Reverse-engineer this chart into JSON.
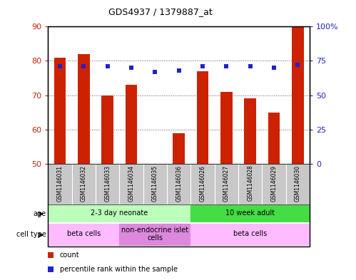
{
  "title": "GDS4937 / 1379887_at",
  "samples": [
    "GSM1146031",
    "GSM1146032",
    "GSM1146033",
    "GSM1146034",
    "GSM1146035",
    "GSM1146036",
    "GSM1146026",
    "GSM1146027",
    "GSM1146028",
    "GSM1146029",
    "GSM1146030"
  ],
  "counts": [
    81,
    82,
    70,
    73,
    50,
    59,
    77,
    71,
    69,
    65,
    90
  ],
  "percentile_ranks": [
    71,
    71,
    71,
    70,
    67,
    68,
    71,
    71,
    71,
    70,
    72
  ],
  "ymin": 50,
  "ymax": 90,
  "yticks_left": [
    50,
    60,
    70,
    80,
    90
  ],
  "yticks_right": [
    0,
    25,
    50,
    75,
    100
  ],
  "bar_color": "#cc2200",
  "dot_color": "#2222cc",
  "bar_width": 0.5,
  "age_groups": [
    {
      "label": "2-3 day neonate",
      "start": 0,
      "end": 6,
      "color": "#bbffbb"
    },
    {
      "label": "10 week adult",
      "start": 6,
      "end": 11,
      "color": "#44dd44"
    }
  ],
  "cell_type_groups": [
    {
      "label": "beta cells",
      "start": 0,
      "end": 3,
      "color": "#ffbbff"
    },
    {
      "label": "non-endocrine islet\ncells",
      "start": 3,
      "end": 6,
      "color": "#dd88dd"
    },
    {
      "label": "beta cells",
      "start": 6,
      "end": 11,
      "color": "#ffbbff"
    }
  ],
  "legend_count_color": "#cc2200",
  "legend_dot_color": "#2222cc",
  "grid_color": "#555555",
  "sample_bg_color": "#c8c8c8",
  "left_tick_color": "#cc2200",
  "right_tick_color": "#2222cc",
  "bg_color": "#ffffff"
}
